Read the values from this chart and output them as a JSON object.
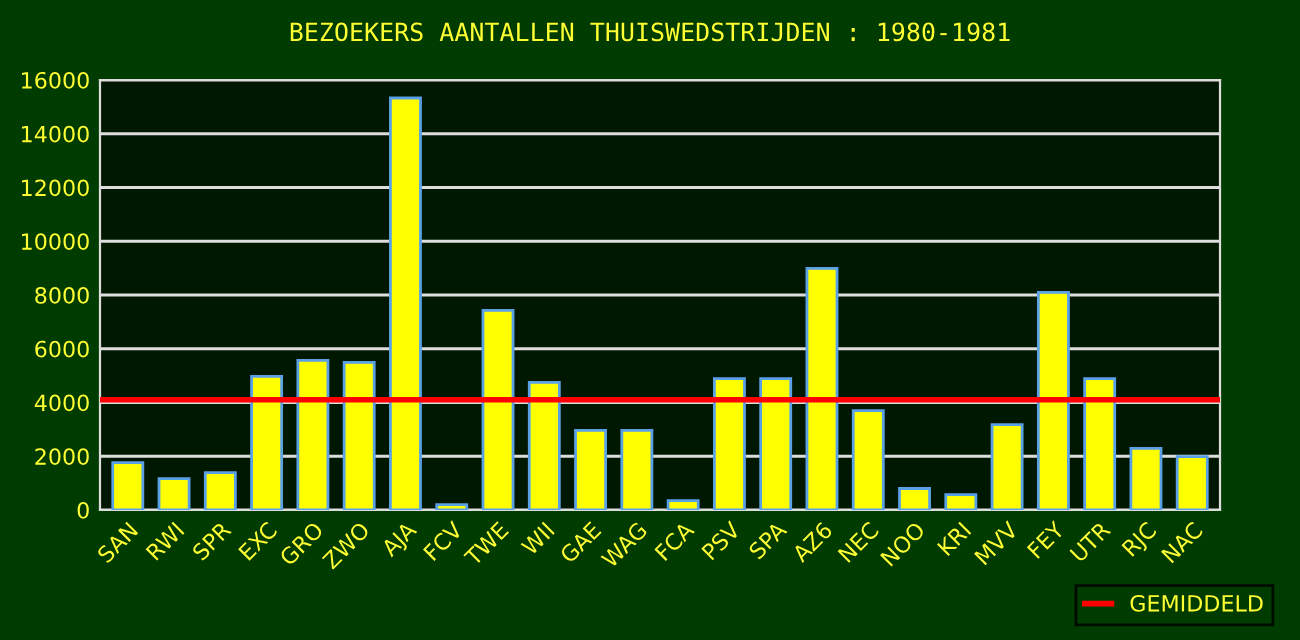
{
  "chart_data": {
    "type": "bar",
    "title": "BEZOEKERS AANTALLEN THUISWEDSTRIJDEN : 1980-1981",
    "categories": [
      "SAN",
      "RWI",
      "SPR",
      "EXC",
      "GRO",
      "ZWO",
      "AJA",
      "FCV",
      "TWE",
      "WII",
      "GAE",
      "WAG",
      "FCA",
      "PSV",
      "SPA",
      "AZ6",
      "NEC",
      "NOO",
      "KRI",
      "MVV",
      "FEY",
      "UTR",
      "RJC",
      "NAC"
    ],
    "values": [
      1760,
      1170,
      1390,
      4970,
      5570,
      5490,
      15330,
      200,
      7430,
      4750,
      2960,
      2960,
      350,
      4890,
      4890,
      8990,
      3700,
      800,
      570,
      3180,
      8100,
      4890,
      2290,
      1990
    ],
    "color": "#ffff00",
    "ylim": [
      0,
      16000
    ],
    "yticks": [
      0,
      2000,
      4000,
      6000,
      8000,
      10000,
      12000,
      14000,
      16000
    ],
    "grid": "y",
    "legend": "bottom right",
    "ref_lines": [
      {
        "axis": "y",
        "value": 4100,
        "label": "GEMIDDELD",
        "color": "#ff0000"
      }
    ]
  }
}
